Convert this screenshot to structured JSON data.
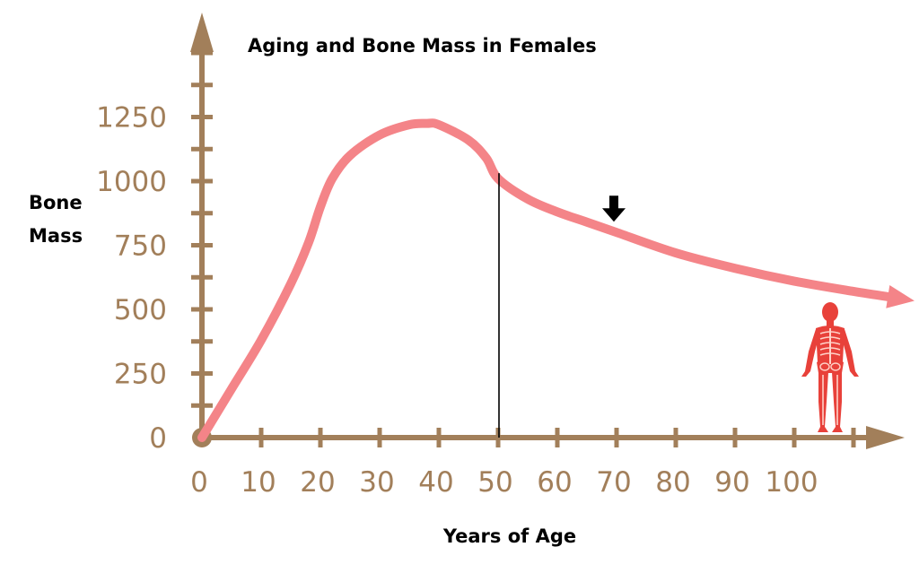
{
  "chart_data": {
    "type": "line",
    "title": "Aging and Bone Mass in Females",
    "xlabel": "Years of Age",
    "ylabel_lines": [
      "Bone",
      "Mass"
    ],
    "x_ticks": [
      "0",
      "10",
      "20",
      "30",
      "40",
      "50",
      "60",
      "70",
      "80",
      "90",
      "100"
    ],
    "y_ticks": [
      "0",
      "250",
      "500",
      "750",
      "1000",
      "1250"
    ],
    "xlim": [
      0,
      118
    ],
    "ylim": [
      0,
      1600
    ],
    "grid": false,
    "legend": "none",
    "series": [
      {
        "x": [
          0,
          5,
          10,
          15,
          18,
          20,
          22,
          25,
          30,
          35,
          38,
          40,
          45,
          48,
          50,
          55,
          60,
          65,
          70,
          80,
          90,
          100,
          110,
          117
        ],
        "y": [
          0,
          190,
          380,
          600,
          760,
          900,
          1010,
          1100,
          1180,
          1220,
          1225,
          1220,
          1160,
          1090,
          1010,
          930,
          880,
          840,
          800,
          720,
          660,
          610,
          570,
          545
        ]
      }
    ],
    "marker_line_x": 50,
    "arrow_marker_x": 70
  },
  "colors": {
    "axis": "#a27f5a",
    "curve": "#f48488",
    "figure": "#e8413a",
    "figure_bones": "#ffd2c8",
    "text": "#000000"
  },
  "icons": {
    "down_arrow": "down-arrow-icon",
    "human_figure": "human-skeleton-icon"
  }
}
